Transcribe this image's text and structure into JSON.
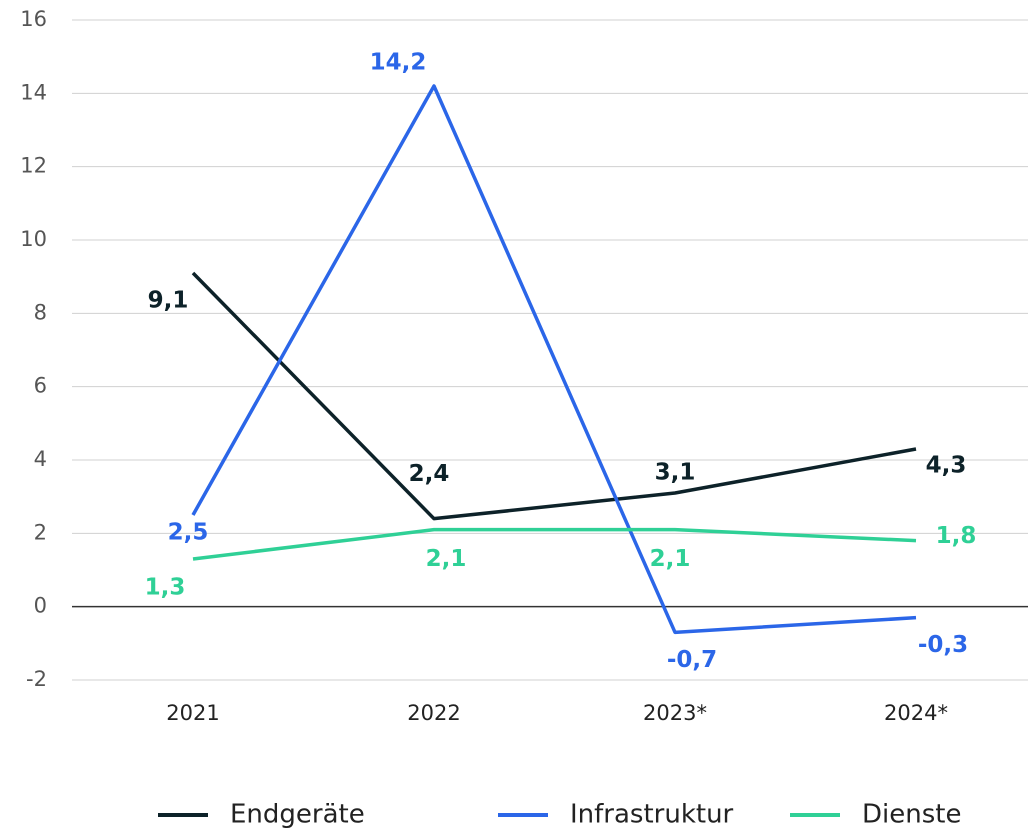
{
  "chart_data": {
    "type": "line",
    "categories": [
      "2021",
      "2022",
      "2023*",
      "2024*"
    ],
    "series": [
      {
        "name": "Endgeräte",
        "color": "#0d2229",
        "values": [
          9.1,
          2.4,
          3.1,
          4.3
        ],
        "value_labels": [
          "9,1",
          "2,4",
          "3,1",
          "4,3"
        ]
      },
      {
        "name": "Infrastruktur",
        "color": "#2b66e8",
        "values": [
          2.5,
          14.2,
          -0.7,
          -0.3
        ],
        "value_labels": [
          "2,5",
          "14,2",
          "-0,7",
          "-0,3"
        ]
      },
      {
        "name": "Dienste",
        "color": "#2fd096",
        "values": [
          1.3,
          2.1,
          2.1,
          1.8
        ],
        "value_labels": [
          "1,3",
          "2,1",
          "2,1",
          "1,8"
        ]
      }
    ],
    "ylim": [
      -2,
      16
    ],
    "yticks": [
      -2,
      0,
      2,
      4,
      6,
      8,
      10,
      12,
      14,
      16
    ],
    "grid": true,
    "legend": "bottom"
  }
}
